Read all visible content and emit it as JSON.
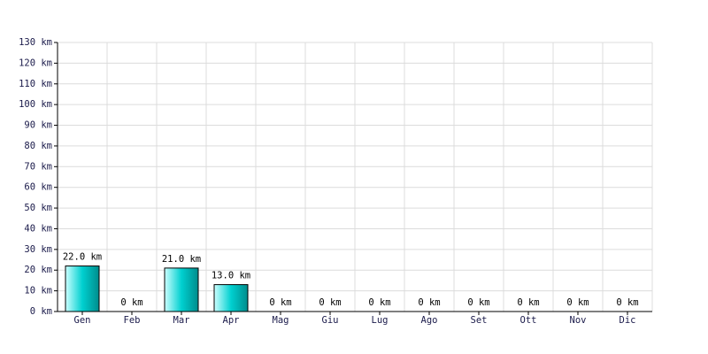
{
  "chart_data": {
    "type": "bar",
    "categories": [
      "Gen",
      "Feb",
      "Mar",
      "Apr",
      "Mag",
      "Giu",
      "Lug",
      "Ago",
      "Set",
      "Ott",
      "Nov",
      "Dic"
    ],
    "values": [
      22,
      0,
      21,
      13,
      0,
      0,
      0,
      0,
      0,
      0,
      0,
      0
    ],
    "value_labels": [
      "22.0 km",
      "0 km",
      "21.0 km",
      "13.0 km",
      "0 km",
      "0 km",
      "0 km",
      "0 km",
      "0 km",
      "0 km",
      "0 km",
      "0 km"
    ],
    "color": "#00c8c8",
    "ylim": [
      0,
      130
    ],
    "yticks": [
      {
        "value": 0,
        "label": "0 km"
      },
      {
        "value": 10,
        "label": "10 km"
      },
      {
        "value": 20,
        "label": "20 km"
      },
      {
        "value": 30,
        "label": "30 km"
      },
      {
        "value": 40,
        "label": "40 km"
      },
      {
        "value": 50,
        "label": "50 km"
      },
      {
        "value": 60,
        "label": "60 km"
      },
      {
        "value": 70,
        "label": "70 km"
      },
      {
        "value": 80,
        "label": "80 km"
      },
      {
        "value": 90,
        "label": "90 km"
      },
      {
        "value": 100,
        "label": "100 km"
      },
      {
        "value": 110,
        "label": "110 km"
      },
      {
        "value": 120,
        "label": "120 km"
      },
      {
        "value": 130,
        "label": "130 km"
      }
    ],
    "grid": true
  }
}
